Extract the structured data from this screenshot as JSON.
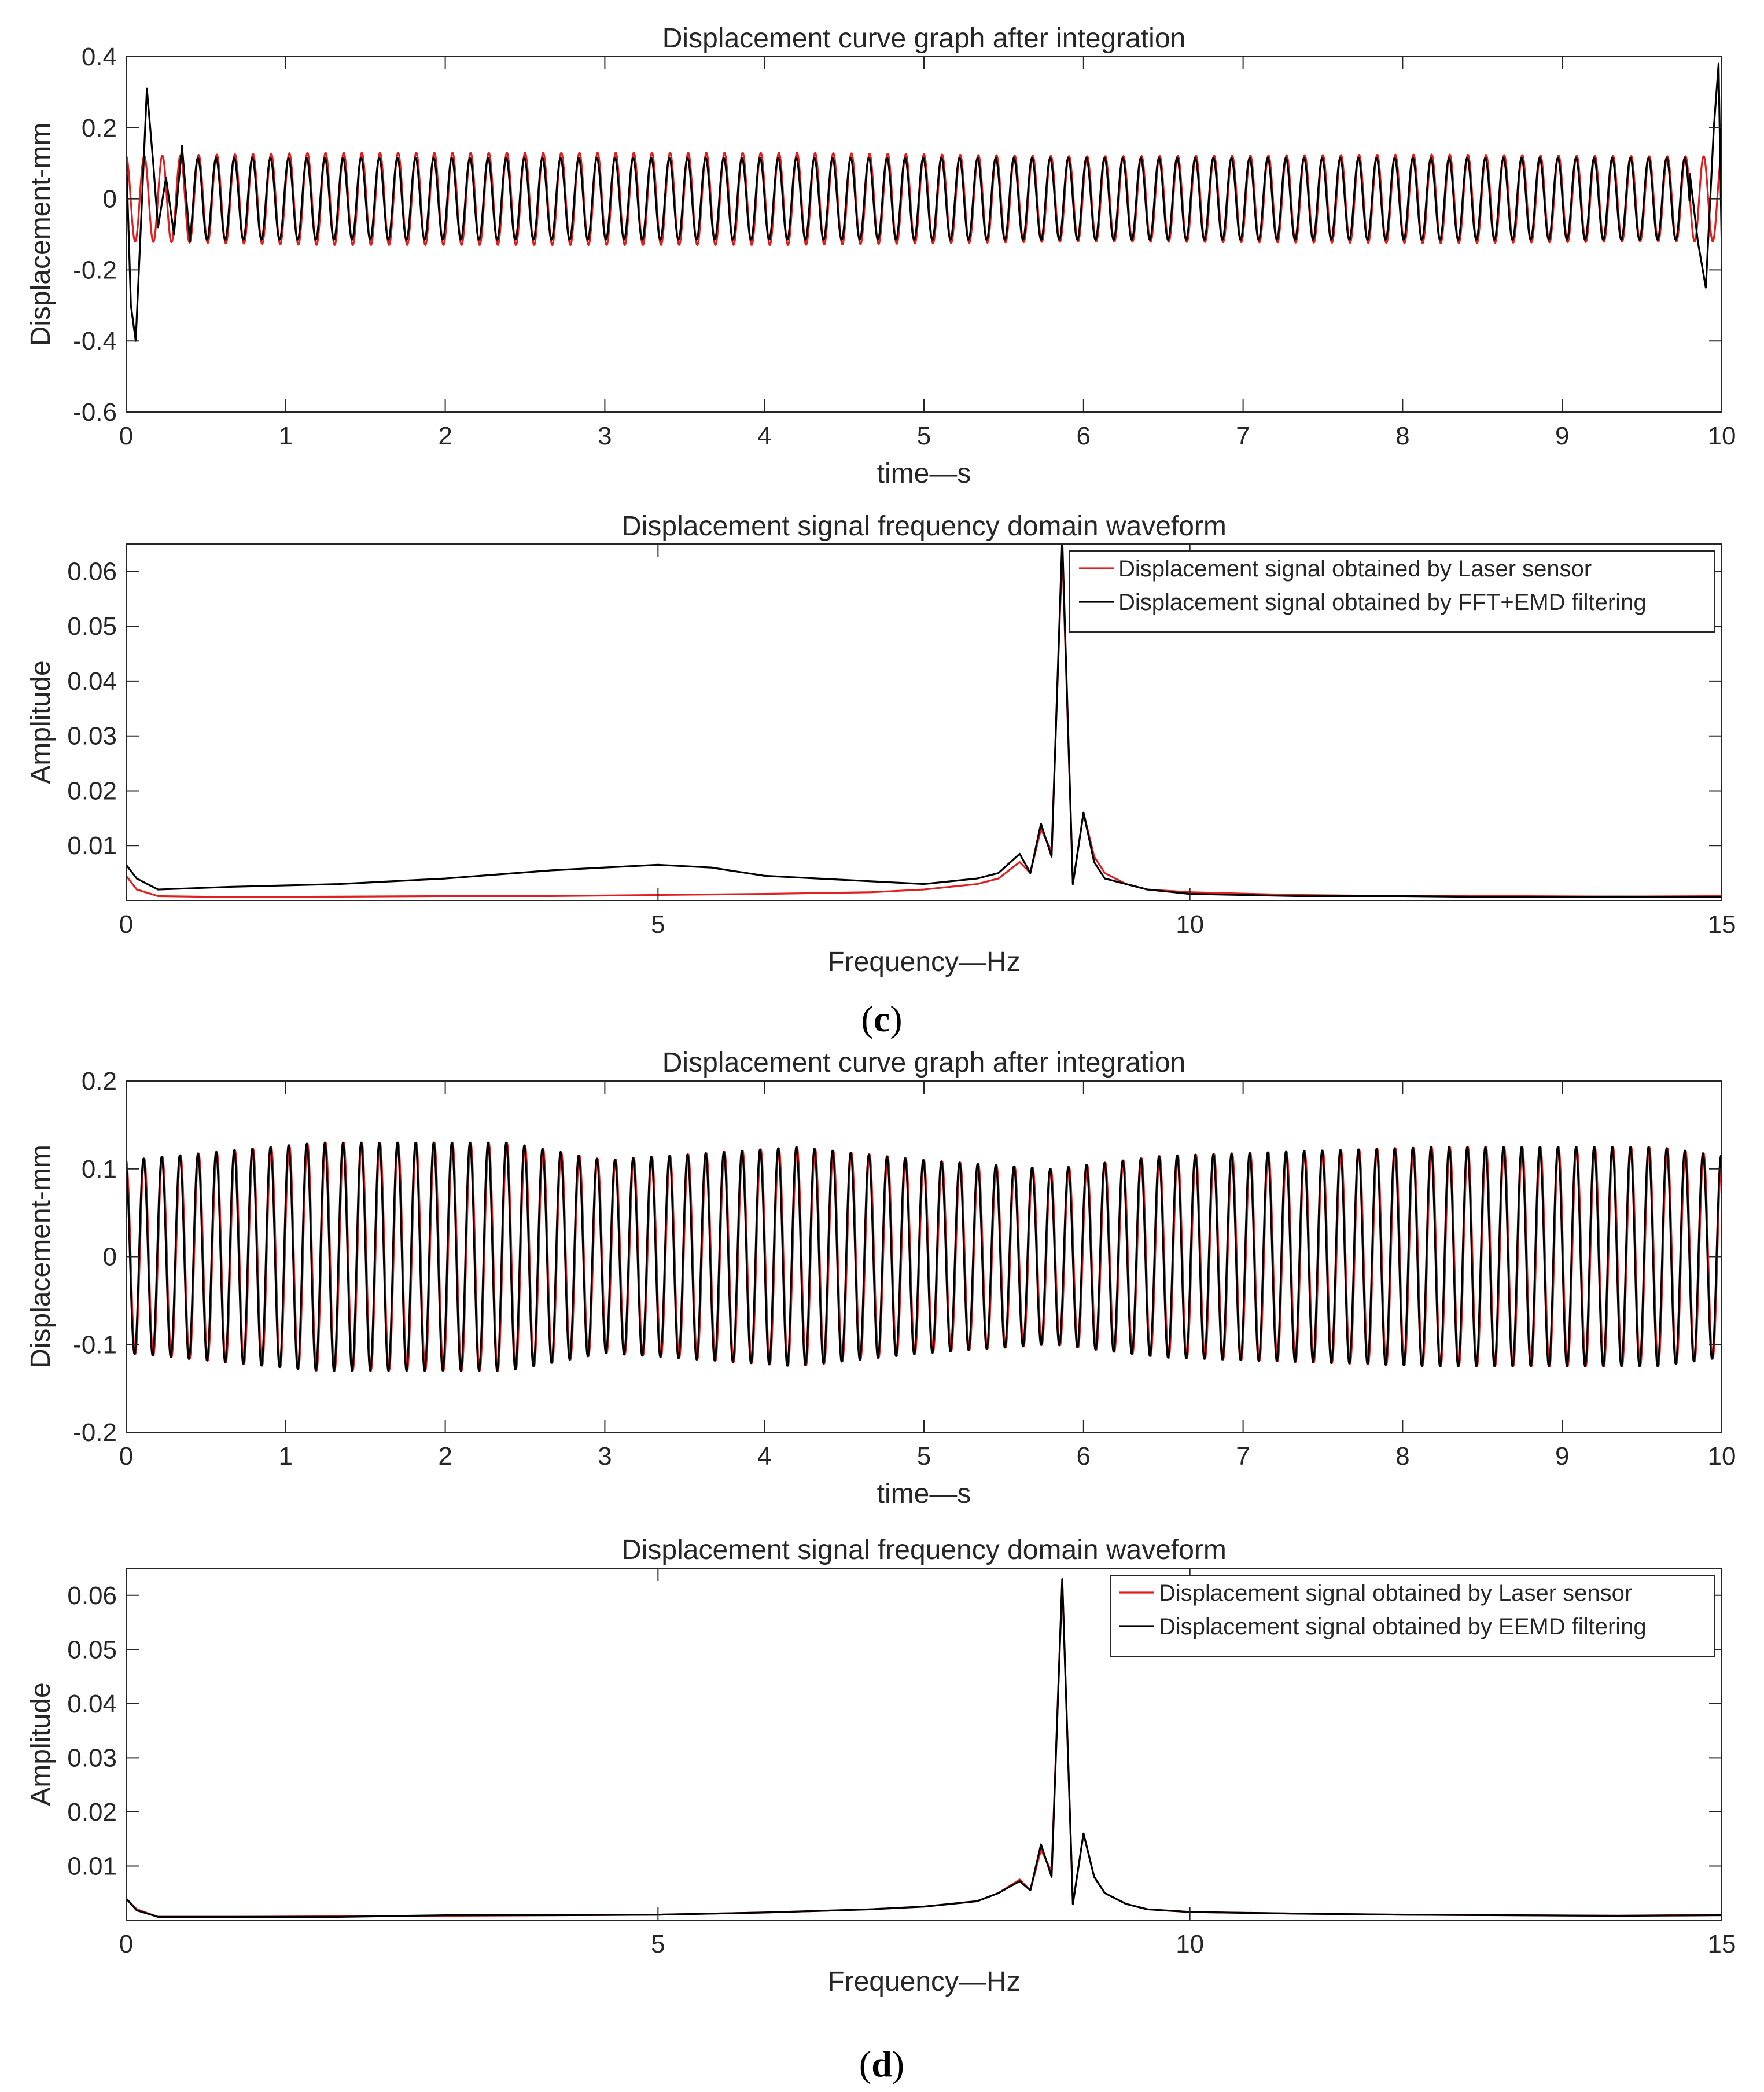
{
  "colors": {
    "laser": "#e02020",
    "filtered": "#000000",
    "axis": "#262626"
  },
  "panel_labels": {
    "c": "(c)",
    "d": "(d)",
    "c_letter": "c",
    "d_letter": "d",
    "open": "(",
    "close": ")"
  },
  "chart_data": [
    {
      "id": "c1",
      "type": "line",
      "title": "Displacement curve graph after integration",
      "xlabel": "time—s",
      "ylabel": "Displacement-mm",
      "xlim": [
        0,
        10
      ],
      "ylim": [
        -0.6,
        0.4
      ],
      "xticks": [
        0,
        1,
        2,
        3,
        4,
        5,
        6,
        7,
        8,
        9,
        10
      ],
      "xtick_labels": [
        "0",
        "1",
        "2",
        "3",
        "4",
        "5",
        "6",
        "7",
        "8",
        "9",
        "10"
      ],
      "yticks": [
        -0.6,
        -0.4,
        -0.2,
        0,
        0.2,
        0.4
      ],
      "ytick_labels": [
        "-0.6",
        "-0.4",
        "-0.2",
        "0",
        "0.2",
        "0.4"
      ],
      "grid": false,
      "legend": null,
      "series": [
        {
          "name": "Displacement signal obtained by Laser sensor",
          "color": "#e02020",
          "kind": "sine",
          "frequency_hz": 8.8,
          "amplitude": 0.12,
          "envelope_points": [
            [
              0,
              0.12
            ],
            [
              1.2,
              0.13
            ],
            [
              1.9,
              0.13
            ],
            [
              2.4,
              0.13
            ],
            [
              4.2,
              0.13
            ],
            [
              6.0,
              0.12
            ],
            [
              8.2,
              0.125
            ],
            [
              9.6,
              0.12
            ],
            [
              10,
              0.12
            ]
          ]
        },
        {
          "name": "Displacement signal obtained by FFT+EMD filtering",
          "color": "#000000",
          "kind": "sine",
          "frequency_hz": 8.8,
          "amplitude": 0.115,
          "edge_points": [
            [
              0.0,
              0.13
            ],
            [
              0.03,
              -0.3
            ],
            [
              0.06,
              -0.4
            ],
            [
              0.1,
              0.0
            ],
            [
              0.13,
              0.31
            ],
            [
              0.17,
              0.1
            ],
            [
              0.2,
              -0.08
            ],
            [
              0.25,
              0.06
            ],
            [
              0.3,
              -0.1
            ],
            [
              0.35,
              0.15
            ],
            [
              0.4,
              -0.12
            ],
            [
              9.8,
              0.07
            ],
            [
              9.85,
              -0.12
            ],
            [
              9.9,
              -0.25
            ],
            [
              9.95,
              0.2
            ],
            [
              9.98,
              0.38
            ],
            [
              10.0,
              -0.15
            ]
          ]
        }
      ]
    },
    {
      "id": "c2",
      "type": "line",
      "title": "Displacement signal frequency domain waveform",
      "xlabel": "Frequency—Hz",
      "ylabel": "Amplitude",
      "xlim": [
        0,
        15
      ],
      "ylim": [
        0,
        0.065
      ],
      "xticks": [
        0,
        5,
        10,
        15
      ],
      "xtick_labels": [
        "0",
        "5",
        "10",
        "15"
      ],
      "yticks": [
        0.01,
        0.02,
        0.03,
        0.04,
        0.05,
        0.06
      ],
      "ytick_labels": [
        "0.01",
        "0.02",
        "0.03",
        "0.04",
        "0.05",
        "0.06"
      ],
      "grid": false,
      "legend": "top-right",
      "series": [
        {
          "name": "Displacement signal obtained by Laser sensor",
          "color": "#e02020",
          "x": [
            0,
            0.1,
            0.3,
            1,
            2,
            3,
            4,
            5,
            6,
            7,
            7.5,
            8,
            8.2,
            8.4,
            8.5,
            8.6,
            8.7,
            8.8,
            8.9,
            9.0,
            9.1,
            9.2,
            9.4,
            9.6,
            10,
            11,
            12,
            13,
            14,
            15
          ],
          "y": [
            0.0045,
            0.002,
            0.0008,
            0.0006,
            0.0007,
            0.0008,
            0.0008,
            0.001,
            0.0012,
            0.0015,
            0.002,
            0.003,
            0.004,
            0.007,
            0.005,
            0.013,
            0.009,
            0.064,
            0.003,
            0.016,
            0.008,
            0.005,
            0.003,
            0.002,
            0.0015,
            0.001,
            0.0008,
            0.0008,
            0.0007,
            0.0008
          ]
        },
        {
          "name": "Displacement signal obtained by FFT+EMD filtering",
          "color": "#000000",
          "x": [
            0,
            0.1,
            0.3,
            1,
            2,
            3,
            4,
            5,
            5.5,
            6,
            7,
            7.5,
            8,
            8.2,
            8.4,
            8.5,
            8.6,
            8.7,
            8.8,
            8.9,
            9.0,
            9.1,
            9.2,
            9.4,
            9.6,
            10,
            11,
            12,
            13,
            14,
            15
          ],
          "y": [
            0.0065,
            0.004,
            0.002,
            0.0025,
            0.003,
            0.004,
            0.0055,
            0.0065,
            0.006,
            0.0045,
            0.0035,
            0.003,
            0.004,
            0.005,
            0.0085,
            0.005,
            0.014,
            0.008,
            0.066,
            0.003,
            0.016,
            0.007,
            0.004,
            0.003,
            0.002,
            0.0012,
            0.0008,
            0.0008,
            0.0006,
            0.0007,
            0.0006
          ]
        }
      ]
    },
    {
      "id": "d1",
      "type": "line",
      "title": "Displacement curve graph after integration",
      "xlabel": "time—s",
      "ylabel": "Displacement-mm",
      "xlim": [
        0,
        10
      ],
      "ylim": [
        -0.2,
        0.2
      ],
      "xticks": [
        0,
        1,
        2,
        3,
        4,
        5,
        6,
        7,
        8,
        9,
        10
      ],
      "xtick_labels": [
        "0",
        "1",
        "2",
        "3",
        "4",
        "5",
        "6",
        "7",
        "8",
        "9",
        "10"
      ],
      "yticks": [
        -0.2,
        -0.1,
        0,
        0.1,
        0.2
      ],
      "ytick_labels": [
        "-0.2",
        "-0.1",
        "0",
        "0.1",
        "0.2"
      ],
      "grid": false,
      "legend": null,
      "series": [
        {
          "name": "Displacement signal obtained by Laser sensor",
          "color": "#e02020",
          "kind": "sine",
          "frequency_hz": 8.8,
          "amplitude": 0.115,
          "envelope_points": [
            [
              0,
              0.11
            ],
            [
              1.2,
              0.13
            ],
            [
              2.4,
              0.13
            ],
            [
              3.0,
              0.11
            ],
            [
              4.2,
              0.125
            ],
            [
              5.0,
              0.11
            ],
            [
              5.8,
              0.1
            ],
            [
              6.5,
              0.115
            ],
            [
              8.2,
              0.125
            ],
            [
              9.6,
              0.125
            ],
            [
              10,
              0.115
            ]
          ]
        },
        {
          "name": "Displacement signal obtained by EEMD filtering",
          "color": "#000000",
          "kind": "sine",
          "frequency_hz": 8.8,
          "amplitude": 0.115,
          "envelope_points": [
            [
              0,
              0.11
            ],
            [
              1.2,
              0.13
            ],
            [
              2.4,
              0.13
            ],
            [
              3.0,
              0.11
            ],
            [
              4.2,
              0.125
            ],
            [
              5.0,
              0.11
            ],
            [
              5.8,
              0.1
            ],
            [
              6.5,
              0.115
            ],
            [
              8.2,
              0.125
            ],
            [
              9.6,
              0.125
            ],
            [
              10,
              0.115
            ]
          ]
        }
      ]
    },
    {
      "id": "d2",
      "type": "line",
      "title": "Displacement signal frequency domain waveform",
      "xlabel": "Frequency—Hz",
      "ylabel": "Amplitude",
      "xlim": [
        0,
        15
      ],
      "ylim": [
        0,
        0.065
      ],
      "xticks": [
        0,
        5,
        10,
        15
      ],
      "xtick_labels": [
        "0",
        "5",
        "10",
        "15"
      ],
      "yticks": [
        0.01,
        0.02,
        0.03,
        0.04,
        0.05,
        0.06
      ],
      "ytick_labels": [
        "0.01",
        "0.02",
        "0.03",
        "0.04",
        "0.05",
        "0.06"
      ],
      "grid": false,
      "legend": "top-right",
      "series": [
        {
          "name": "Displacement signal obtained by Laser sensor",
          "color": "#e02020",
          "x": [
            0,
            0.1,
            0.3,
            1,
            2,
            3,
            4,
            5,
            6,
            7,
            7.5,
            8,
            8.2,
            8.4,
            8.5,
            8.6,
            8.7,
            8.8,
            8.9,
            9.0,
            9.1,
            9.2,
            9.4,
            9.6,
            10,
            11,
            12,
            13,
            14,
            15
          ],
          "y": [
            0.004,
            0.002,
            0.0006,
            0.0006,
            0.0007,
            0.0008,
            0.0009,
            0.001,
            0.0014,
            0.002,
            0.0025,
            0.0035,
            0.005,
            0.0075,
            0.0055,
            0.013,
            0.009,
            0.063,
            0.003,
            0.016,
            0.008,
            0.005,
            0.003,
            0.002,
            0.0015,
            0.0012,
            0.001,
            0.0009,
            0.0008,
            0.001
          ]
        },
        {
          "name": "Displacement signal obtained by EEMD filtering",
          "color": "#000000",
          "x": [
            0,
            0.1,
            0.3,
            1,
            2,
            3,
            4,
            5,
            6,
            7,
            7.5,
            8,
            8.2,
            8.4,
            8.5,
            8.6,
            8.7,
            8.8,
            8.9,
            9.0,
            9.1,
            9.2,
            9.4,
            9.6,
            10,
            11,
            12,
            13,
            14,
            15
          ],
          "y": [
            0.004,
            0.0018,
            0.0006,
            0.0006,
            0.0006,
            0.0009,
            0.0009,
            0.001,
            0.0014,
            0.002,
            0.0025,
            0.0035,
            0.005,
            0.0072,
            0.0055,
            0.014,
            0.008,
            0.063,
            0.003,
            0.016,
            0.008,
            0.005,
            0.003,
            0.002,
            0.0015,
            0.0012,
            0.001,
            0.0009,
            0.0008,
            0.0009
          ]
        }
      ]
    }
  ]
}
